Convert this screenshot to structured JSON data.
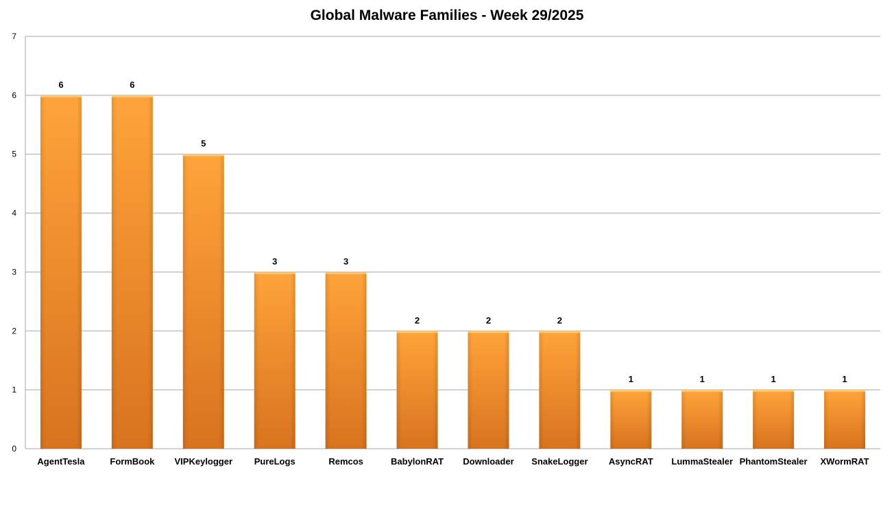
{
  "chart_data": {
    "type": "bar",
    "title": "Global Malware Families - Week 29/2025",
    "xlabel": "",
    "ylabel": "",
    "categories": [
      "AgentTesla",
      "FormBook",
      "VIPKeylogger",
      "PureLogs",
      "Remcos",
      "BabylonRAT",
      "Downloader",
      "SnakeLogger",
      "AsyncRAT",
      "LummaStealer",
      "PhantomStealer",
      "XWormRAT"
    ],
    "values": [
      6,
      6,
      5,
      3,
      3,
      2,
      2,
      2,
      1,
      1,
      1,
      1
    ],
    "ylim": [
      0,
      7
    ],
    "yticks": [
      0,
      1,
      2,
      3,
      4,
      5,
      6,
      7
    ],
    "grid": true,
    "legend": "none",
    "data_labels": true,
    "colors": {
      "bar_light": "#ffa43a",
      "bar_dark": "#d8731f",
      "bar_cap": "#ffc870",
      "grid": "#a6a6a6",
      "axis": "#a6a6a6"
    }
  }
}
